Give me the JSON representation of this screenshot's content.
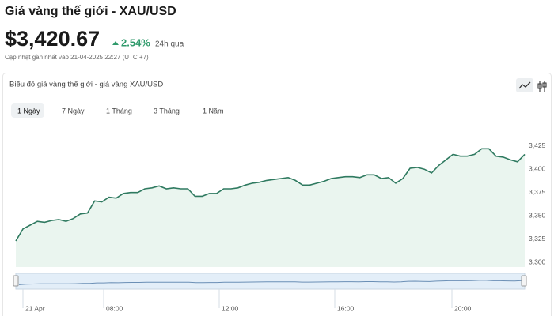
{
  "header": {
    "title": "Giá vàng thế giới - XAU/USD",
    "price": "$3,420.67",
    "change": "2.54%",
    "period": "24h qua",
    "updated": "Cập nhật gần nhất vào 21-04-2025 22:27 (UTC +7)"
  },
  "panel_title": "Biểu đồ giá vàng thế giới - giá vàng XAU/USD",
  "tabs": [
    "1 Ngày",
    "7 Ngày",
    "1 Tháng",
    "3 Tháng",
    "1 Năm"
  ],
  "navigator_labels": [
    "21 Apr",
    "08:00",
    "12:00",
    "16:00",
    "20:00"
  ],
  "chart_data": {
    "type": "area",
    "color": "#2f7a60",
    "values": [
      3323,
      3336,
      3340,
      3344,
      3343,
      3345,
      3346,
      3344,
      3347,
      3352,
      3353,
      3366,
      3365,
      3370,
      3369,
      3374,
      3375,
      3375,
      3379,
      3380,
      3382,
      3379,
      3380,
      3379,
      3379,
      3371,
      3371,
      3374,
      3374,
      3379,
      3379,
      3380,
      3383,
      3385,
      3386,
      3388,
      3389,
      3390,
      3391,
      3388,
      3383,
      3383,
      3385,
      3387,
      3390,
      3391,
      3392,
      3392,
      3391,
      3394,
      3394,
      3390,
      3391,
      3385,
      3390,
      3401,
      3402,
      3400,
      3396,
      3404,
      3410,
      3416,
      3414,
      3414,
      3416,
      3422,
      3422,
      3414,
      3413,
      3410,
      3408,
      3416
    ],
    "ylim": [
      3295,
      3446
    ],
    "yticks": [
      {
        "value": 3300,
        "label": "3,300"
      },
      {
        "value": 3325,
        "label": "3,325"
      },
      {
        "value": 3350,
        "label": "3,350"
      },
      {
        "value": 3375,
        "label": "3,375"
      },
      {
        "value": 3400,
        "label": "3,400"
      },
      {
        "value": 3425,
        "label": "3,425"
      }
    ]
  }
}
